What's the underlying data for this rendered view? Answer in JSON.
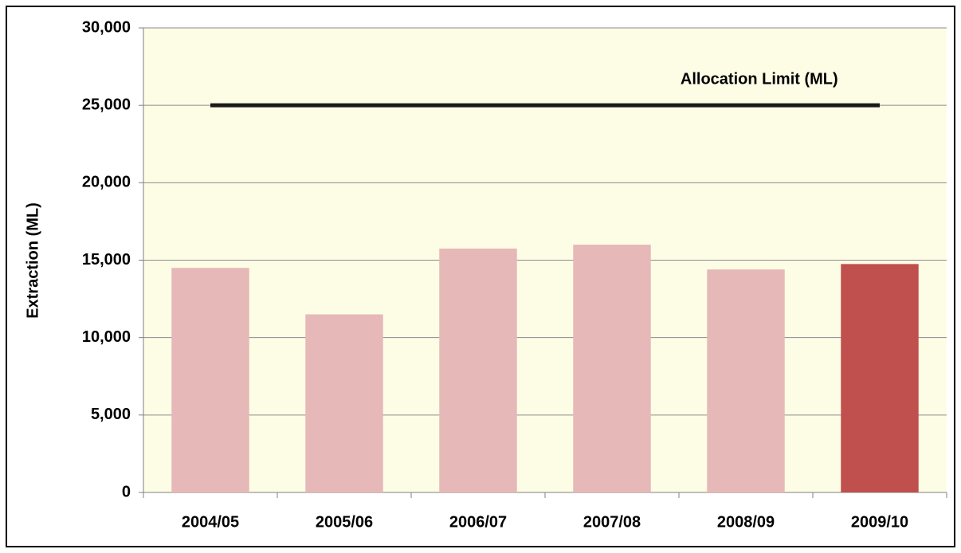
{
  "chart_data": {
    "type": "bar",
    "y_label": "Extraction (ML)",
    "categories": [
      "2004/05",
      "2005/06",
      "2006/07",
      "2007/08",
      "2008/09",
      "2009/10"
    ],
    "series": [
      {
        "type": "bar",
        "colors": [
          "#e6b8b7",
          "#e6b8b7",
          "#e6b8b7",
          "#e6b8b7",
          "#e6b8b7",
          "#c0504d"
        ],
        "values": [
          14500,
          11500,
          15750,
          16000,
          14400,
          14750
        ]
      },
      {
        "type": "line",
        "name": "Allocation Limit (ML)",
        "color": "#1a1a1a",
        "values": [
          25000,
          25000,
          25000,
          25000,
          25000,
          25000
        ]
      }
    ],
    "ylim": [
      0,
      30000
    ],
    "yticks": [
      0,
      {
        "value": 5000,
        "label": "5,000"
      },
      {
        "value": 10000,
        "label": "10,000"
      },
      {
        "value": 15000,
        "label": "15,000"
      },
      {
        "value": 20000,
        "label": "20,000"
      },
      {
        "value": 25000,
        "label": "25,000"
      },
      {
        "value": 30000,
        "label": "30,000"
      }
    ],
    "grid": true,
    "plot_background": "#fdfde6"
  }
}
